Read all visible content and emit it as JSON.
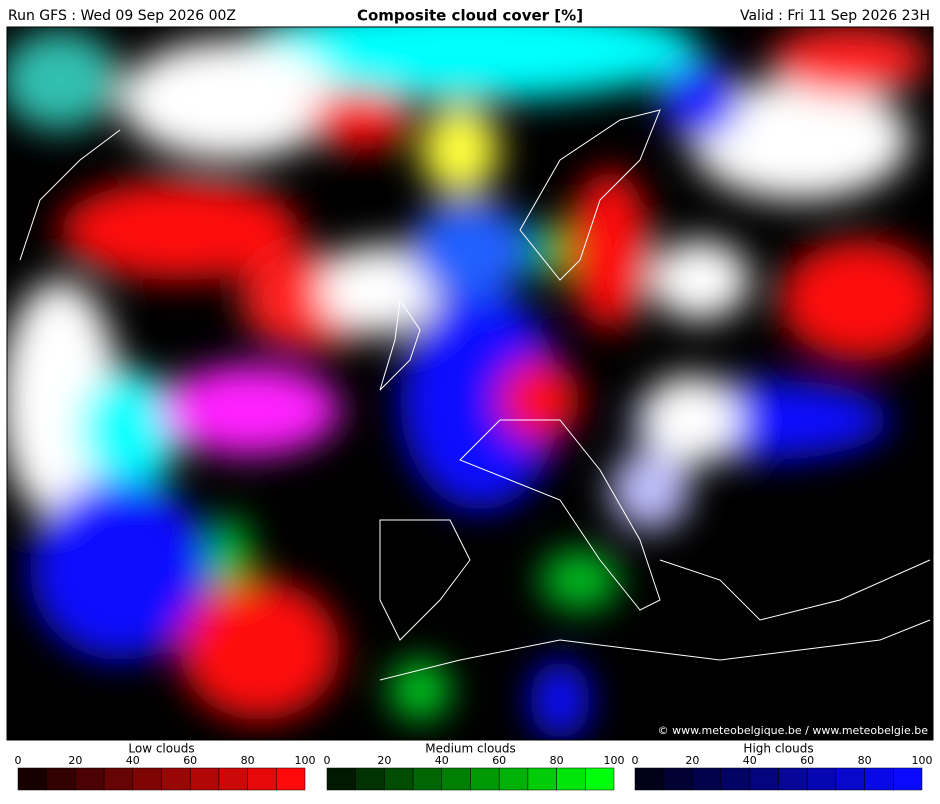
{
  "header": {
    "run": "Run GFS : Wed 09 Sep 2026 00Z",
    "title": "Composite cloud cover [%]",
    "valid": "Valid : Fri 11 Sep 2026 23H"
  },
  "map": {
    "credit": "© www.meteobelgique.be / www.meteobelgie.be"
  },
  "legends": [
    {
      "title": "Low clouds",
      "ticks": [
        0,
        20,
        40,
        60,
        80,
        100
      ]
    },
    {
      "title": "Medium clouds",
      "ticks": [
        0,
        20,
        40,
        60,
        80,
        100
      ]
    },
    {
      "title": "High clouds",
      "ticks": [
        0,
        20,
        40,
        60,
        80,
        100
      ]
    }
  ]
}
